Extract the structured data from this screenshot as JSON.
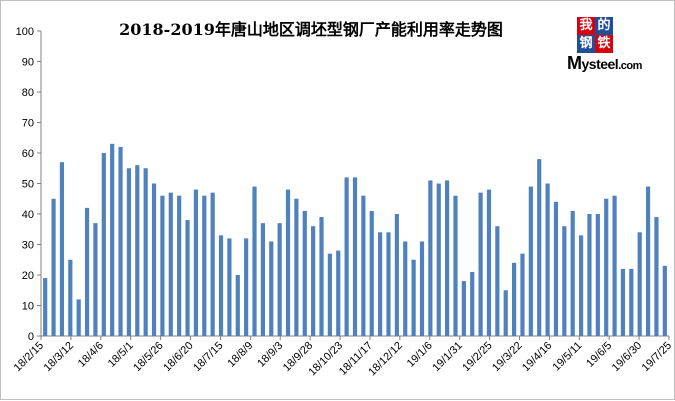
{
  "chart_data": {
    "type": "bar",
    "title": "2018-2019年唐山地区调坯型钢厂产能利用率走势图",
    "xlabel": "",
    "ylabel": "",
    "ylim": [
      0,
      100
    ],
    "yticks": [
      0,
      10,
      20,
      30,
      40,
      50,
      60,
      70,
      80,
      90,
      100
    ],
    "grid": false,
    "bar_color": "#4F81BD",
    "x_tick_labels": [
      "18/2/15",
      "18/3/12",
      "18/4/6",
      "18/5/1",
      "18/5/26",
      "18/6/20",
      "18/7/15",
      "18/8/9",
      "18/9/3",
      "18/9/28",
      "18/10/23",
      "18/11/17",
      "18/12/12",
      "19/1/6",
      "19/1/31",
      "19/2/25",
      "19/3/22",
      "19/4/16",
      "19/5/11",
      "19/6/5",
      "19/6/30",
      "19/7/25"
    ],
    "values": [
      19,
      45,
      57,
      25,
      12,
      42,
      37,
      60,
      63,
      62,
      55,
      56,
      55,
      50,
      46,
      47,
      46,
      38,
      48,
      46,
      47,
      33,
      32,
      20,
      32,
      49,
      37,
      31,
      37,
      48,
      45,
      41,
      36,
      39,
      27,
      28,
      52,
      52,
      46,
      41,
      34,
      34,
      40,
      31,
      25,
      31,
      51,
      50,
      51,
      46,
      18,
      21,
      47,
      48,
      36,
      15,
      24,
      27,
      49,
      58,
      50,
      44,
      36,
      41,
      33,
      40,
      40,
      45,
      46,
      22,
      22,
      34,
      49,
      39,
      23
    ]
  },
  "logo": {
    "cells": [
      "我",
      "的",
      "钢",
      "铁"
    ],
    "text_big": "M",
    "text_mid": "ysteel",
    "text_small": ".com",
    "colors": [
      "#d7000f",
      "#1f4e9b",
      "#1f4e9b",
      "#d7000f"
    ]
  }
}
